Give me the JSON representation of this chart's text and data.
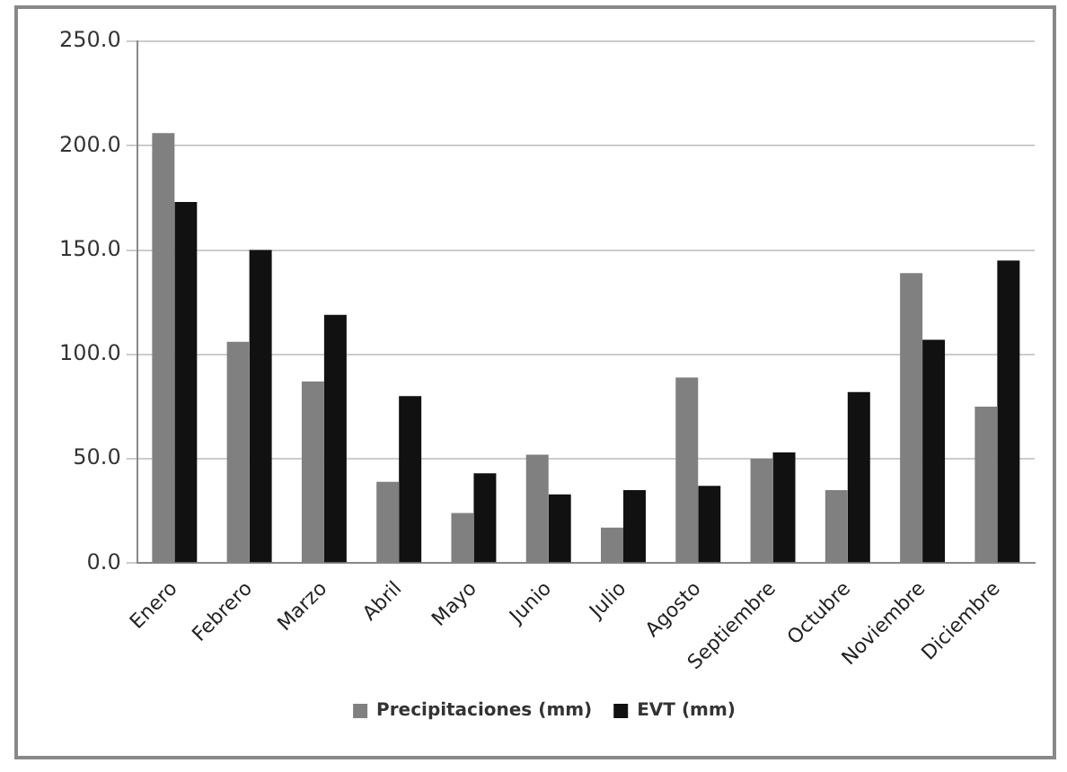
{
  "chart_data": {
    "type": "bar",
    "categories": [
      "Enero",
      "Febrero",
      "Marzo",
      "Abril",
      "Mayo",
      "Junio",
      "Julio",
      "Agosto",
      "Septiembre",
      "Octubre",
      "Noviembre",
      "Diciembre"
    ],
    "series": [
      {
        "name": "Precipitaciones (mm)",
        "color": "#808080",
        "values": [
          206,
          106,
          87,
          39,
          24,
          52,
          17,
          89,
          50,
          35,
          139,
          75
        ]
      },
      {
        "name": "EVT (mm)",
        "color": "#111111",
        "values": [
          173,
          150,
          119,
          80,
          43,
          33,
          35,
          37,
          53,
          82,
          107,
          145
        ]
      }
    ],
    "ylim": [
      0,
      250
    ],
    "yticks": [
      {
        "value": 0,
        "label": "0.0"
      },
      {
        "value": 50,
        "label": "50.0"
      },
      {
        "value": 100,
        "label": "100.0"
      },
      {
        "value": 150,
        "label": "150.0"
      },
      {
        "value": 200,
        "label": "200.0"
      },
      {
        "value": 250,
        "label": "250.0"
      }
    ],
    "grid": "y",
    "legend": "bottom"
  }
}
